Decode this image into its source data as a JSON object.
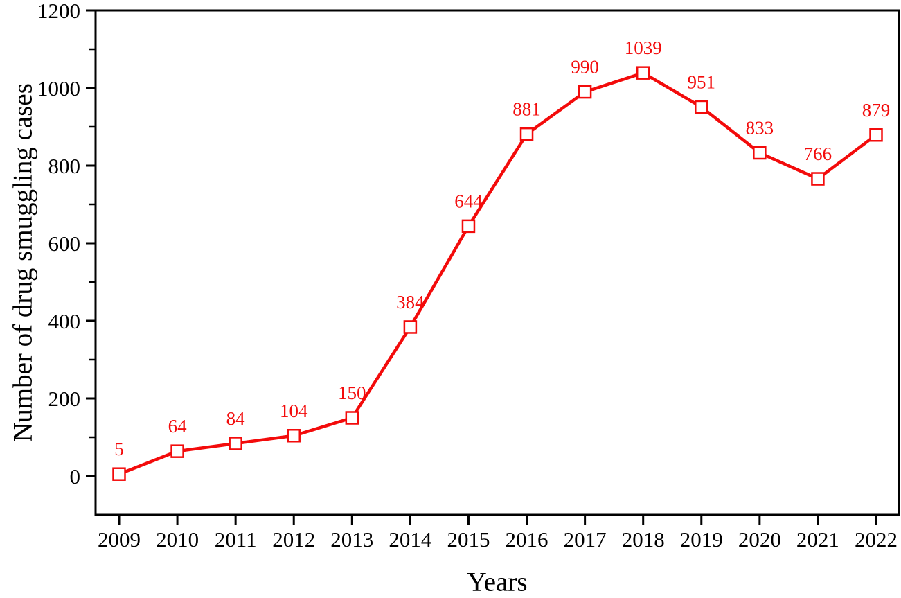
{
  "chart_data": {
    "type": "line",
    "title": "",
    "xlabel": "Years",
    "ylabel": "Number of drug smuggling cases",
    "categories": [
      "2009",
      "2010",
      "2011",
      "2012",
      "2013",
      "2014",
      "2015",
      "2016",
      "2017",
      "2018",
      "2019",
      "2020",
      "2021",
      "2022"
    ],
    "series": [
      {
        "name": "Number of drug smuggling cases",
        "values": [
          5,
          64,
          84,
          104,
          150,
          384,
          644,
          881,
          990,
          1039,
          951,
          833,
          766,
          879
        ]
      }
    ],
    "data_labels_shown": true,
    "ylim": [
      -100,
      1200
    ],
    "y_major_ticks": [
      0,
      200,
      400,
      600,
      800,
      1000,
      1200
    ],
    "y_minor_step": 100,
    "grid": "off",
    "legend": "none",
    "frame": "full-box",
    "tick_direction": "out",
    "marker": "open-square",
    "colors": {
      "line": "#f30b0b",
      "marker_stroke": "#f30b0b",
      "marker_fill": "#ffffff",
      "data_label": "#f30b0b",
      "axis": "#000000",
      "tick_label": "#000000",
      "background": "#ffffff"
    }
  }
}
